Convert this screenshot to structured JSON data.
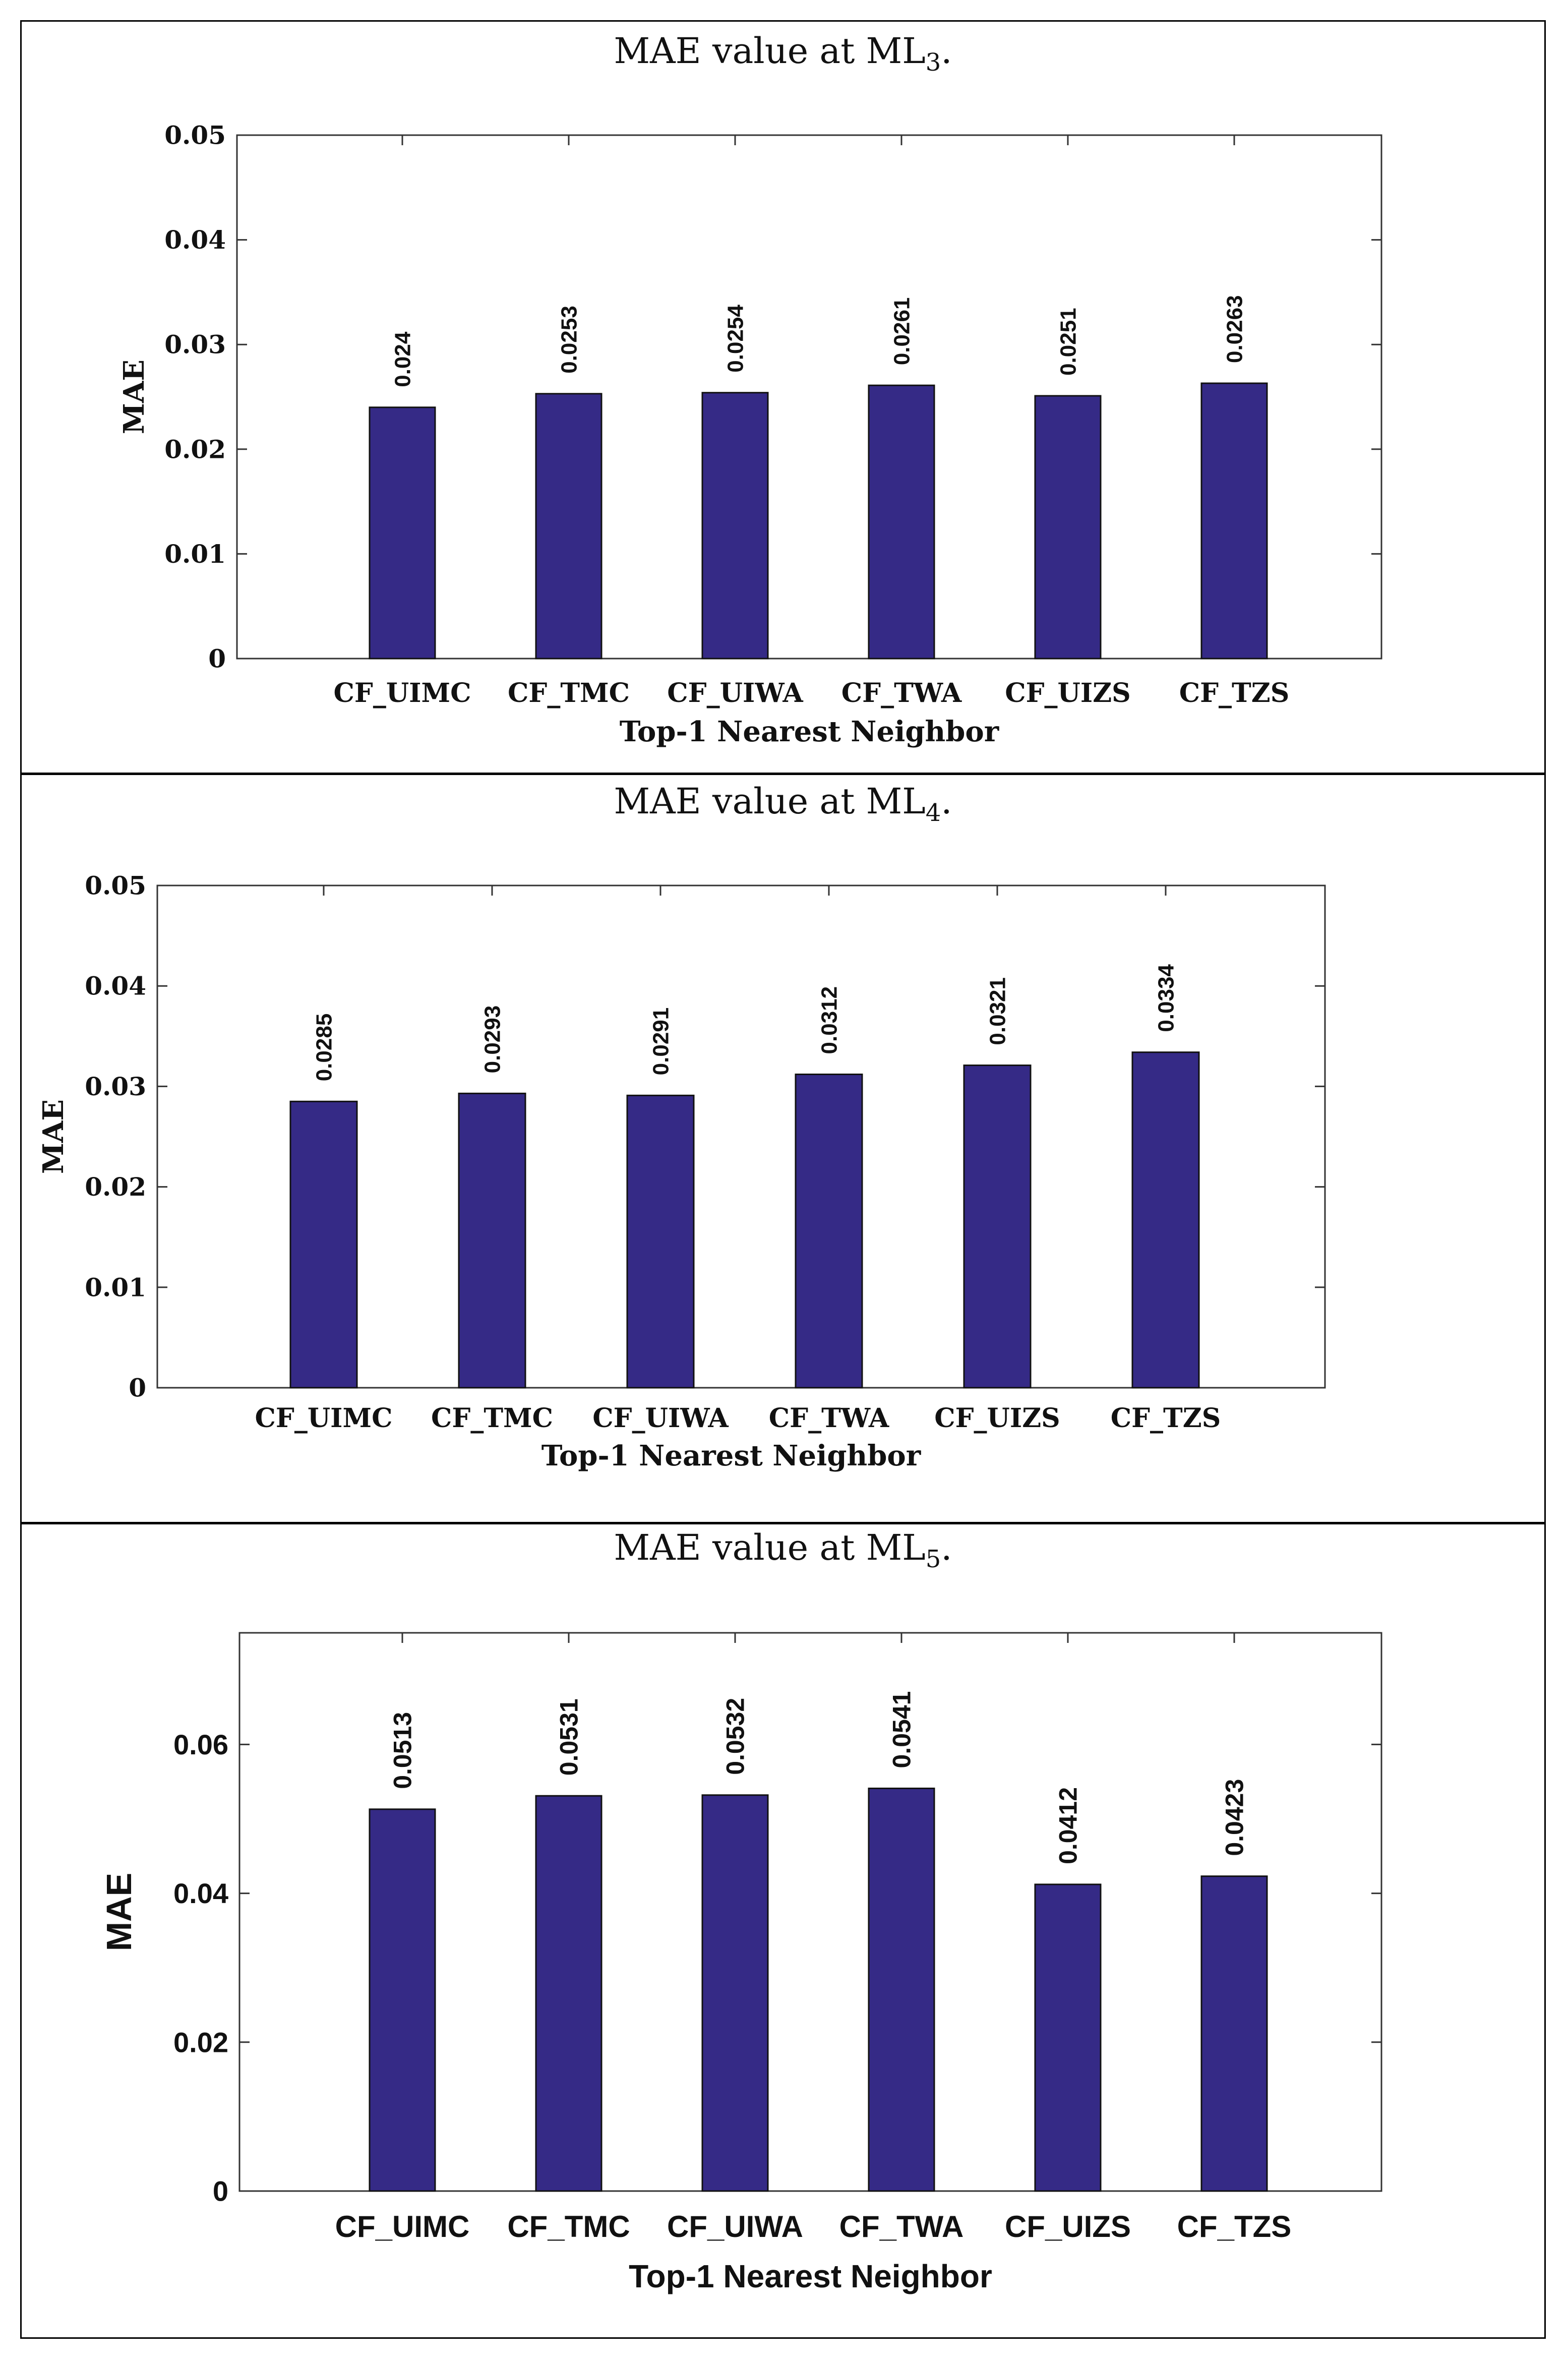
{
  "chart_data": [
    {
      "type": "bar",
      "title": "MAE value at ML",
      "title_subscript": "3",
      "title_suffix": ".",
      "xlabel": "Top-1 Nearest Neighbor",
      "ylabel": "MAE",
      "categories": [
        "CF_UIMC",
        "CF_TMC",
        "CF_UIWA",
        "CF_TWA",
        "CF_UIZS",
        "CF_TZS"
      ],
      "values": [
        0.024,
        0.0253,
        0.0254,
        0.0261,
        0.0251,
        0.0263
      ],
      "data_labels": [
        "0.024",
        "0.0253",
        "0.0254",
        "0.0261",
        "0.0251",
        "0.0263"
      ],
      "ylim": [
        0,
        0.05
      ],
      "yticks": [
        0,
        0.01,
        0.02,
        0.03,
        0.04,
        0.05
      ],
      "ytick_labels": [
        "0",
        "0.01",
        "0.02",
        "0.03",
        "0.04",
        "0.05"
      ],
      "grid": false,
      "bar_color": "#352a86"
    },
    {
      "type": "bar",
      "title": "MAE value at ML",
      "title_subscript": "4",
      "title_suffix": ".",
      "xlabel": "Top-1 Nearest Neighbor",
      "ylabel": "MAE",
      "categories": [
        "CF_UIMC",
        "CF_TMC",
        "CF_UIWA",
        "CF_TWA",
        "CF_UIZS",
        "CF_TZS"
      ],
      "values": [
        0.0285,
        0.0293,
        0.0291,
        0.0312,
        0.0321,
        0.0334
      ],
      "data_labels": [
        "0.0285",
        "0.0293",
        "0.0291",
        "0.0312",
        "0.0321",
        "0.0334"
      ],
      "ylim": [
        0,
        0.05
      ],
      "yticks": [
        0,
        0.01,
        0.02,
        0.03,
        0.04,
        0.05
      ],
      "ytick_labels": [
        "0",
        "0.01",
        "0.02",
        "0.03",
        "0.04",
        "0.05"
      ],
      "grid": false,
      "bar_color": "#352a86"
    },
    {
      "type": "bar",
      "title": "MAE value at ML",
      "title_subscript": "5",
      "title_suffix": ".",
      "xlabel": "Top-1 Nearest Neighbor",
      "ylabel": "MAE",
      "categories": [
        "CF_UIMC",
        "CF_TMC",
        "CF_UIWA",
        "CF_TWA",
        "CF_UIZS",
        "CF_TZS"
      ],
      "values": [
        0.0513,
        0.0531,
        0.0532,
        0.0541,
        0.0412,
        0.0423
      ],
      "data_labels": [
        "0.0513",
        "0.0531",
        "0.0532",
        "0.0541",
        "0.0412",
        "0.0423"
      ],
      "ylim": [
        0,
        0.075
      ],
      "yticks": [
        0,
        0.02,
        0.04,
        0.06
      ],
      "ytick_labels": [
        "0",
        "0.02",
        "0.04",
        "0.06"
      ],
      "grid": false,
      "bar_color": "#352a86"
    }
  ]
}
